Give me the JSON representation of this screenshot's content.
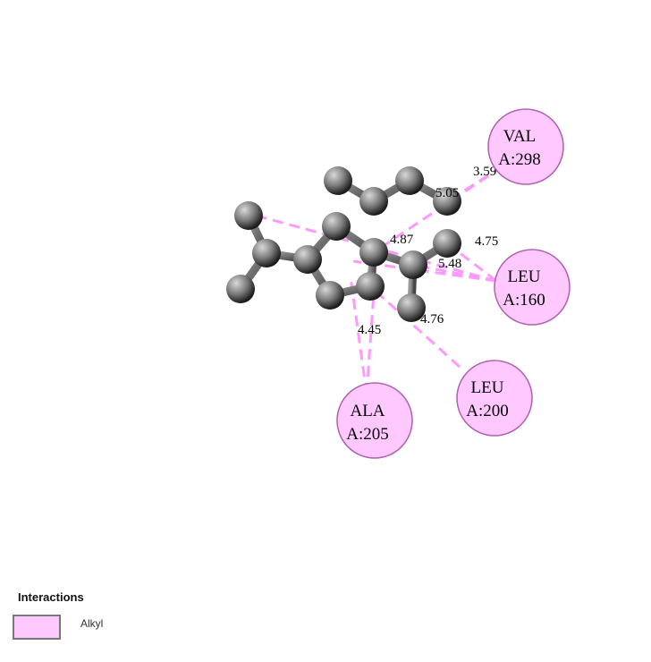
{
  "colors": {
    "alkyl": "#ffc8ff",
    "alkyl_stroke": "#b060b0",
    "interaction_line": "#ff99ff",
    "atom": "#7a7a7a",
    "bond": "#555555"
  },
  "residues": [
    {
      "id": "val298",
      "name": "VAL",
      "chain": "A:298",
      "type": "Alkyl"
    },
    {
      "id": "leu160",
      "name": "LEU",
      "chain": "A:160",
      "type": "Alkyl"
    },
    {
      "id": "leu200",
      "name": "LEU",
      "chain": "A:200",
      "type": "Alkyl"
    },
    {
      "id": "ala205",
      "name": "ALA",
      "chain": "A:205",
      "type": "Alkyl"
    }
  ],
  "distances": [
    "3.59",
    "5.05",
    "4.75",
    "4.87",
    "5.48",
    "4.76",
    "4.45"
  ],
  "legend": {
    "title": "Interactions",
    "items": [
      {
        "label": "Alkyl",
        "color": "#ffc8ff"
      }
    ]
  }
}
